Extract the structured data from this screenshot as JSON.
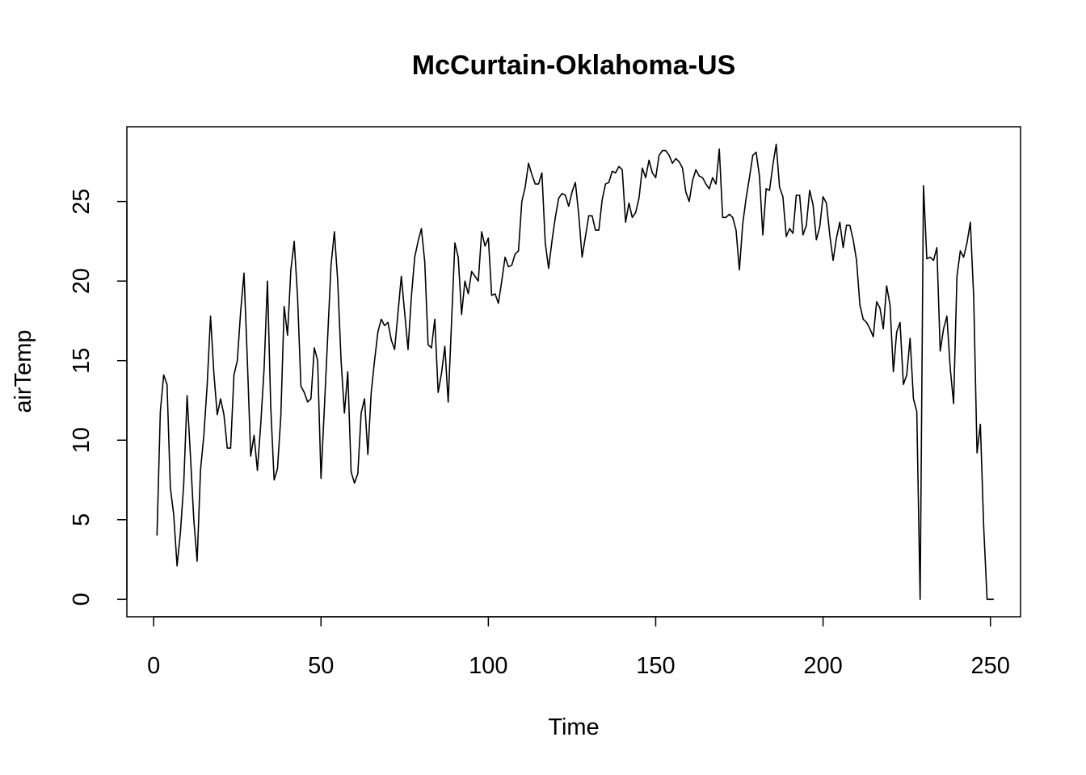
{
  "chart_data": {
    "type": "line",
    "title": "McCurtain-Oklahoma-US",
    "xlabel": "Time",
    "ylabel": "airTemp",
    "xlim": [
      -8,
      259
    ],
    "ylim": [
      -1.1,
      29.7
    ],
    "x_ticks": [
      0,
      50,
      100,
      150,
      200,
      250
    ],
    "y_ticks": [
      0,
      5,
      10,
      15,
      20,
      25
    ],
    "grid": false,
    "legend": "none",
    "line_color": "#000000",
    "series": [
      {
        "x_start": 1,
        "values": [
          4.0,
          11.8,
          14.1,
          13.5,
          7.0,
          5.3,
          2.1,
          4.2,
          7.3,
          12.8,
          9.0,
          5.0,
          2.4,
          8.1,
          10.3,
          13.5,
          17.8,
          14.2,
          11.6,
          12.6,
          11.6,
          9.5,
          9.5,
          14.1,
          15.0,
          18.1,
          20.5,
          15.0,
          9.0,
          10.3,
          8.1,
          11.0,
          14.5,
          20.0,
          12.0,
          7.5,
          8.2,
          11.5,
          18.4,
          16.6,
          20.7,
          22.5,
          19.0,
          13.4,
          13.0,
          12.4,
          12.6,
          15.8,
          15.0,
          7.6,
          12.0,
          16.5,
          21.0,
          23.1,
          20.0,
          15.0,
          11.7,
          14.3,
          8.0,
          7.3,
          7.9,
          11.7,
          12.6,
          9.1,
          13.0,
          15.0,
          16.8,
          17.6,
          17.2,
          17.4,
          16.3,
          15.7,
          18.0,
          20.3,
          18.0,
          15.7,
          19.0,
          21.5,
          22.5,
          23.3,
          21.2,
          16.0,
          15.8,
          17.6,
          13.0,
          14.2,
          15.9,
          12.4,
          17.4,
          22.4,
          21.5,
          17.9,
          20.0,
          19.2,
          20.6,
          20.3,
          20.0,
          23.1,
          22.2,
          22.7,
          19.1,
          19.2,
          18.6,
          20.0,
          21.5,
          20.9,
          21.0,
          21.7,
          21.9,
          25.0,
          25.9,
          27.4,
          26.7,
          26.1,
          26.1,
          26.8,
          22.4,
          20.8,
          22.5,
          24.0,
          25.2,
          25.5,
          25.4,
          24.7,
          25.6,
          26.2,
          24.2,
          21.5,
          22.8,
          24.1,
          24.1,
          23.2,
          23.2,
          25.1,
          26.1,
          26.2,
          26.9,
          26.8,
          27.2,
          27.0,
          23.7,
          24.9,
          24.0,
          24.3,
          25.2,
          27.1,
          26.5,
          27.6,
          26.8,
          26.5,
          27.9,
          28.2,
          28.2,
          27.9,
          27.4,
          27.7,
          27.5,
          27.1,
          25.6,
          25.0,
          26.3,
          27.0,
          26.6,
          26.5,
          26.1,
          25.8,
          26.5,
          26.1,
          28.3,
          24.0,
          24.0,
          24.2,
          24.0,
          23.2,
          20.7,
          23.6,
          25.2,
          26.5,
          27.9,
          28.1,
          26.6,
          22.9,
          25.8,
          25.7,
          27.3,
          28.6,
          25.9,
          25.3,
          22.8,
          23.3,
          23.0,
          25.4,
          25.4,
          22.9,
          23.5,
          25.7,
          24.8,
          22.6,
          23.4,
          25.3,
          24.9,
          22.9,
          21.3,
          22.7,
          23.7,
          22.1,
          23.5,
          23.5,
          22.6,
          21.3,
          18.5,
          17.6,
          17.4,
          17.0,
          16.5,
          18.7,
          18.3,
          17.0,
          19.7,
          18.5,
          14.3,
          16.8,
          17.4,
          13.5,
          14.1,
          16.4,
          12.6,
          11.8,
          0.0,
          26.0,
          21.4,
          21.5,
          21.3,
          22.1,
          15.6,
          17.0,
          17.8,
          14.5,
          12.3,
          20.3,
          21.9,
          21.5,
          22.4,
          23.7,
          19.0,
          9.2,
          11.0,
          4.5,
          0.0,
          0.0,
          0.0
        ]
      }
    ]
  }
}
